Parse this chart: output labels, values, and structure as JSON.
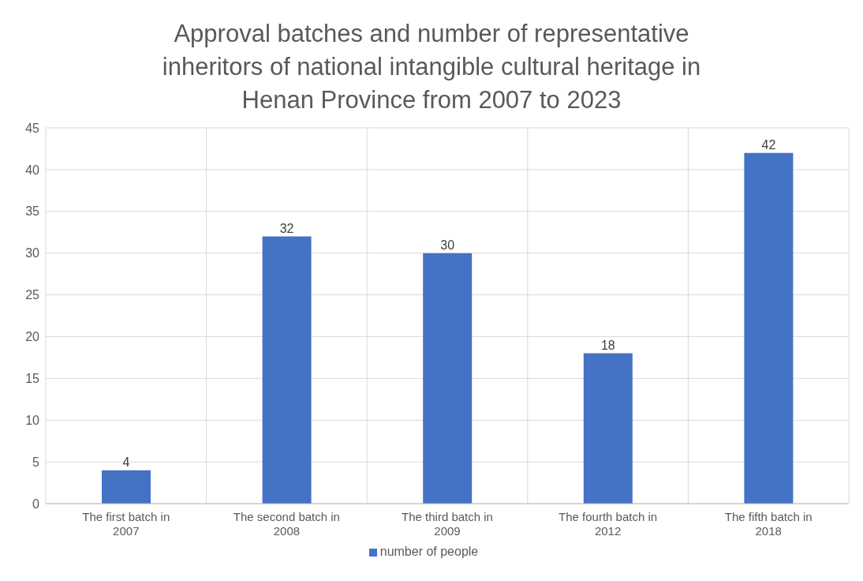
{
  "chart_data": {
    "type": "bar",
    "title": "Approval batches and number of representative inheritors of national intangible cultural heritage in Henan Province from 2007 to 2023",
    "categories": [
      "The first batch in 2007",
      "The second batch in 2008",
      "The third batch in 2009",
      "The fourth batch in 2012",
      "The fifth batch in 2018"
    ],
    "series": [
      {
        "name": "number of people",
        "color": "#4472c4",
        "values": [
          4,
          32,
          30,
          18,
          42
        ]
      }
    ],
    "ylim": [
      0,
      45
    ],
    "yticks": [
      0,
      5,
      10,
      15,
      20,
      25,
      30,
      35,
      40,
      45
    ],
    "grid": true,
    "legend": "bottom",
    "data_labels": true
  }
}
